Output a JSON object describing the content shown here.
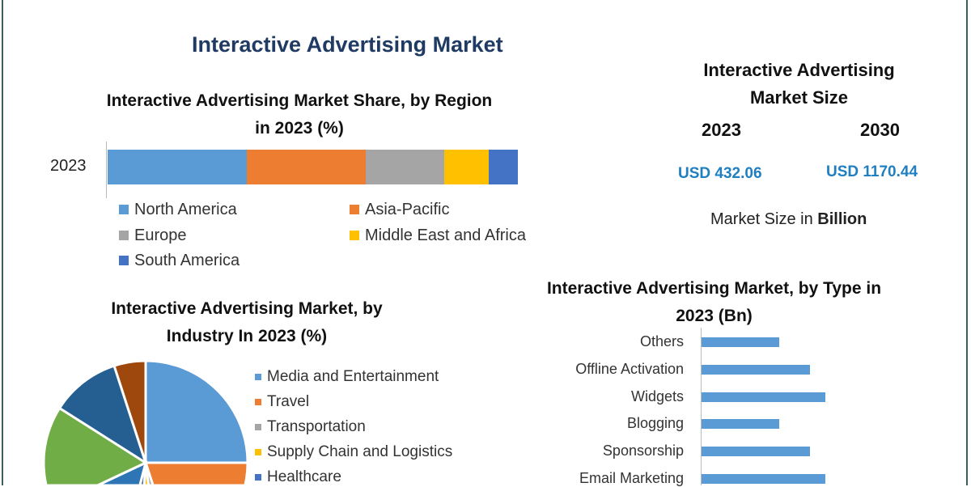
{
  "title": "Interactive Advertising Market",
  "market_size": {
    "heading": "Interactive Advertising Market Size",
    "year_start": "2023",
    "year_end": "2030",
    "value_start": "USD 432.06",
    "value_end": "USD 1170.44",
    "unit_note_prefix": "Market Size in ",
    "unit_note_bold": "Billion"
  },
  "chart_data": [
    {
      "type": "bar",
      "stacked": true,
      "orientation": "horizontal",
      "title": "Interactive Advertising Market Share, by Region in 2023 (%)",
      "categories": [
        "2023"
      ],
      "series": [
        {
          "name": "North America",
          "values": [
            34
          ],
          "color": "#5b9bd5"
        },
        {
          "name": "Asia-Pacific",
          "values": [
            29
          ],
          "color": "#ed7d31"
        },
        {
          "name": "Europe",
          "values": [
            19
          ],
          "color": "#a5a5a5"
        },
        {
          "name": "Middle East and Africa",
          "values": [
            11
          ],
          "color": "#ffc000"
        },
        {
          "name": "South America",
          "values": [
            7
          ],
          "color": "#4472c4"
        }
      ],
      "xlim": [
        0,
        100
      ]
    },
    {
      "type": "pie",
      "title": "Interactive Advertising Market, by Industry In 2023 (%)",
      "slices": [
        {
          "label": "Media and Entertainment",
          "value": 25,
          "color": "#5b9bd5"
        },
        {
          "label": "Travel",
          "value": 20,
          "color": "#ed7d31"
        },
        {
          "label": "Transportation",
          "value": 3,
          "color": "#a5a5a5"
        },
        {
          "label": "Supply Chain and Logistics",
          "value": 3,
          "color": "#ffc000"
        },
        {
          "label": "Healthcare",
          "value": 3,
          "color": "#4472c4"
        },
        {
          "label": "",
          "value": 14,
          "color": "#2e75b6"
        },
        {
          "label": "",
          "value": 16,
          "color": "#70ad47"
        },
        {
          "label": "",
          "value": 11,
          "color": "#255e91"
        },
        {
          "label": "",
          "value": 5,
          "color": "#9e480e"
        }
      ]
    },
    {
      "type": "bar",
      "orientation": "horizontal",
      "title": "Interactive Advertising Market, by Type in 2023 (Bn)",
      "categories": [
        "Others",
        "Offline Activation",
        "Widgets",
        "Blogging",
        "Sponsorship",
        "Email Marketing"
      ],
      "values": [
        2.5,
        3.5,
        4,
        2.5,
        3.5,
        4
      ],
      "color": "#5b9bd5",
      "xlim": [
        0,
        4.5
      ]
    }
  ]
}
